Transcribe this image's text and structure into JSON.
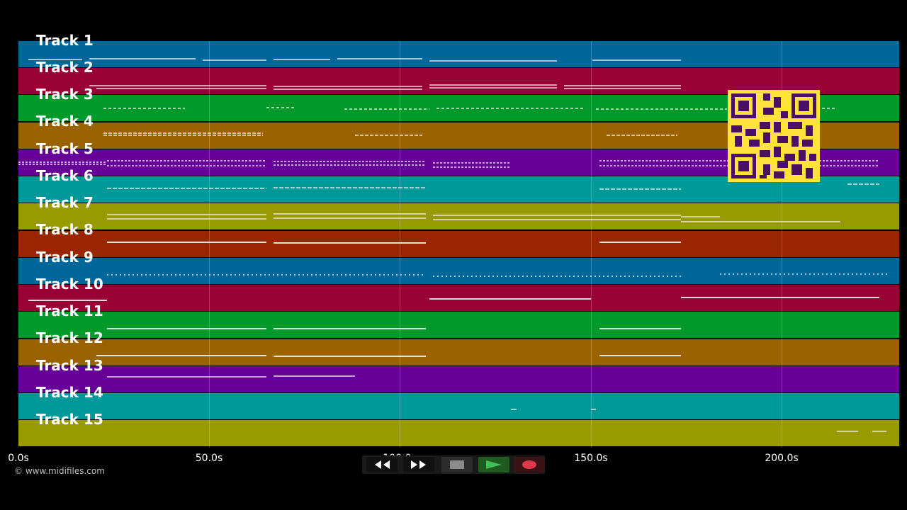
{
  "tracks": [
    {
      "label": "Track 1",
      "color": "#00679a"
    },
    {
      "label": "Track 2",
      "color": "#990033"
    },
    {
      "label": "Track 3",
      "color": "#009a2a"
    },
    {
      "label": "Track 4",
      "color": "#9a6300"
    },
    {
      "label": "Track 5",
      "color": "#670099"
    },
    {
      "label": "Track 6",
      "color": "#009999"
    },
    {
      "label": "Track 7",
      "color": "#999900"
    },
    {
      "label": "Track 8",
      "color": "#992600"
    },
    {
      "label": "Track 9",
      "color": "#00679a"
    },
    {
      "label": "Track 10",
      "color": "#990033"
    },
    {
      "label": "Track 11",
      "color": "#009a2a"
    },
    {
      "label": "Track 12",
      "color": "#9a6300"
    },
    {
      "label": "Track 13",
      "color": "#670099"
    },
    {
      "label": "Track 14",
      "color": "#009999"
    },
    {
      "label": "Track 15",
      "color": "#999900"
    }
  ],
  "timeline": {
    "ticks": [
      "0.0s",
      "50.0s",
      "100.0s",
      "150.0s",
      "200.0s"
    ]
  },
  "copyright": "© www.midifiles.com",
  "transport": {
    "rewind_icon": "double-left-arrow",
    "forward_icon": "double-right-arrow",
    "stop_icon": "square",
    "play_icon": "triangle-right",
    "record_icon": "red-circle"
  },
  "qr_code_icon": "qr-code"
}
